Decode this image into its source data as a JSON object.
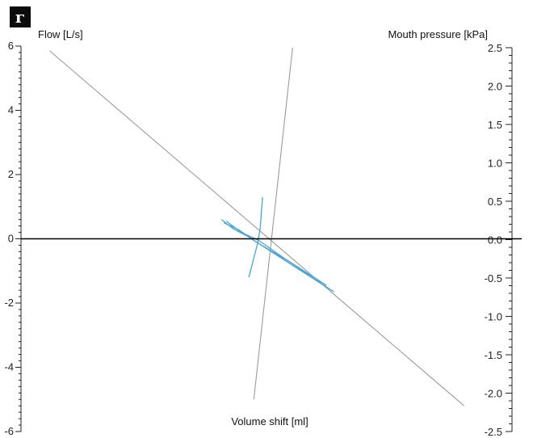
{
  "panel_label": "г",
  "chart_data": {
    "type": "line",
    "left_axis": {
      "label": "Flow [L/s]",
      "range": [
        -6,
        6
      ],
      "ticks": [
        "6",
        "4",
        "2",
        "0",
        "-2",
        "-4",
        "-6"
      ],
      "tick_values": [
        6,
        4,
        2,
        0,
        -2,
        -4,
        -6
      ]
    },
    "right_axis": {
      "label": "Mouth pressure [kPa]",
      "range": [
        -2.5,
        2.5
      ],
      "ticks": [
        "2.5",
        "2.0",
        "1.5",
        "1.0",
        "0.5",
        "0.0",
        "-0.5",
        "-1.0",
        "-1.5",
        "-2.0",
        "-2.5"
      ],
      "tick_values": [
        2.5,
        2.0,
        1.5,
        1.0,
        0.5,
        0.0,
        -0.5,
        -1.0,
        -1.5,
        -2.0,
        -2.5
      ]
    },
    "x_axis": {
      "label": "Volume shift [ml]",
      "range": [
        -1,
        1
      ]
    },
    "series": [
      {
        "color": "#9a9a9a",
        "points": [
          [
            -0.885,
            5.85
          ],
          [
            0.77,
            -5.2
          ]
        ]
      },
      {
        "color": "#9a9a9a",
        "points": [
          [
            -0.07,
            -5.0
          ],
          [
            0.085,
            5.95
          ]
        ]
      },
      {
        "color": "#4aa3d4",
        "points": [
          [
            -0.09,
            -1.2
          ],
          [
            -0.055,
            -0.15
          ],
          [
            -0.045,
            0.3
          ],
          [
            -0.035,
            1.3
          ]
        ]
      },
      {
        "color": "#4aa3d4",
        "points": [
          [
            -0.2,
            0.6
          ],
          [
            -0.15,
            0.3
          ],
          [
            -0.1,
            0.1
          ],
          [
            -0.05,
            -0.15
          ],
          [
            0.1,
            -0.9
          ],
          [
            0.2,
            -1.4
          ],
          [
            0.23,
            -1.55
          ]
        ]
      },
      {
        "color": "#4aa3d4",
        "points": [
          [
            -0.18,
            0.55
          ],
          [
            -0.12,
            0.2
          ],
          [
            -0.05,
            -0.05
          ],
          [
            0.05,
            -0.6
          ],
          [
            0.15,
            -1.1
          ],
          [
            0.22,
            -1.45
          ]
        ]
      },
      {
        "color": "#4aa3d4",
        "points": [
          [
            -0.19,
            0.5
          ],
          [
            -0.13,
            0.28
          ],
          [
            -0.06,
            -0.1
          ],
          [
            0.08,
            -0.75
          ],
          [
            0.18,
            -1.3
          ],
          [
            0.25,
            -1.65
          ]
        ]
      }
    ],
    "zero_line_color": "#000000",
    "grid": false
  }
}
